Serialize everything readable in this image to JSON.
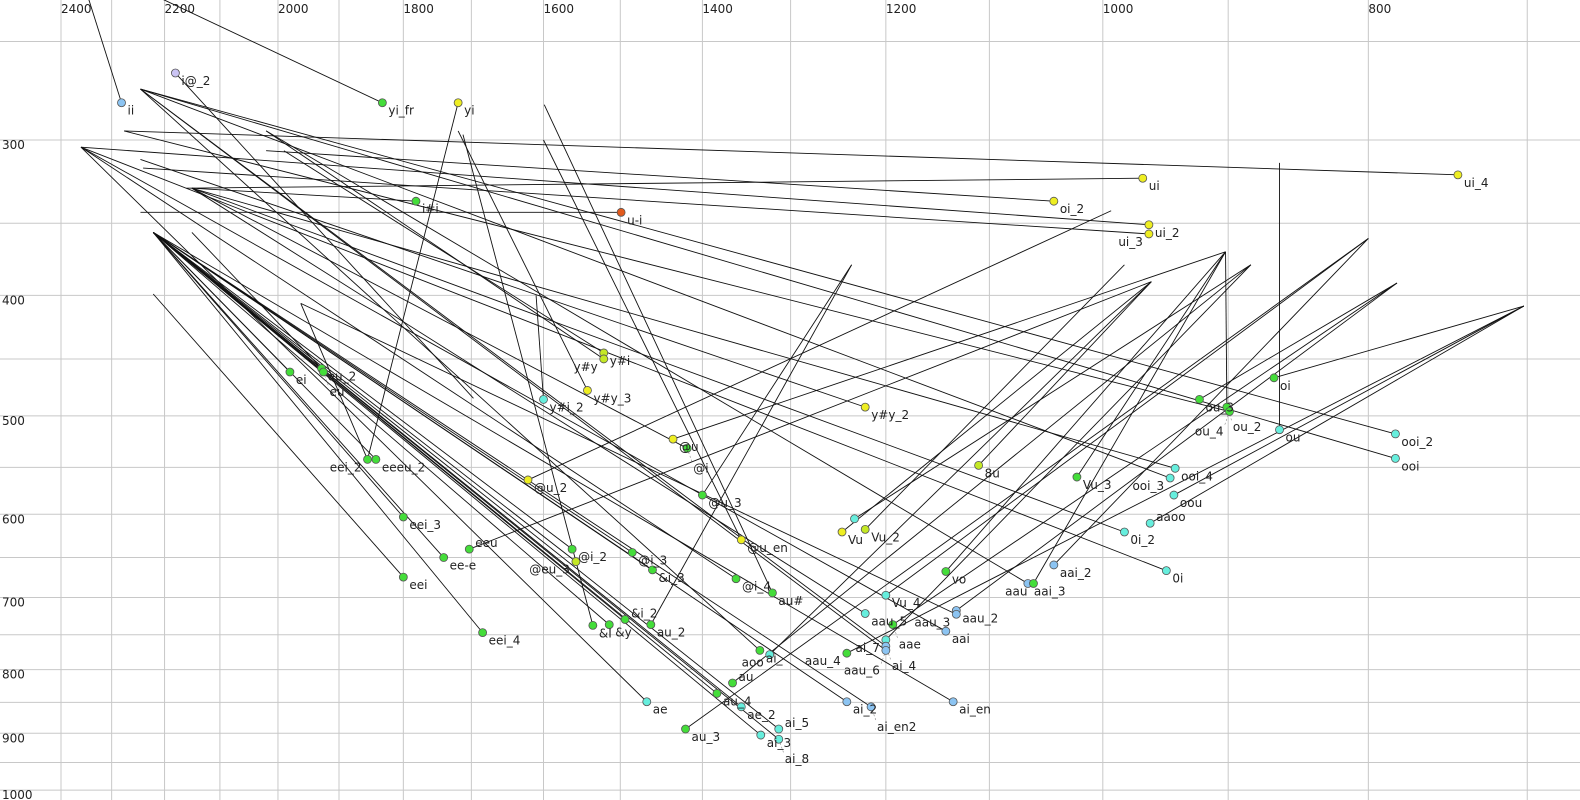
{
  "chart_data": {
    "type": "scatter",
    "title": "",
    "xlabel": "",
    "ylabel": "",
    "x_axis": {
      "reversed": true,
      "scale": "log",
      "range": [
        2400,
        700
      ],
      "ticks": [
        2400,
        2200,
        2000,
        1800,
        1600,
        1400,
        1200,
        1000,
        800
      ],
      "grid_step": 100
    },
    "y_axis": {
      "reversed": true,
      "scale": "log",
      "range": [
        250,
        1000
      ],
      "ticks": [
        300,
        400,
        500,
        600,
        700,
        800,
        900,
        1000
      ],
      "grid_step": 50
    },
    "grid": true,
    "palette": {
      "green": "#44dd3a",
      "yellow": "#eeee22",
      "yellowgreen": "#c4e825",
      "cyan": "#66eedd",
      "blue": "#8cc4f2",
      "lavender": "#cbc4f4",
      "orange": "#e25a1c",
      "line": "#111111",
      "grid": "#c8c8c8"
    },
    "points": [
      {
        "label": "ii",
        "f2": 2281,
        "f1": 280,
        "color": "blue",
        "traj": [
          2345,
          231
        ]
      },
      {
        "label": "i@_2",
        "f2": 2180,
        "f1": 265,
        "color": "lavender",
        "traj": [
          1697,
          484
        ]
      },
      {
        "label": "yi_fr",
        "f2": 1832,
        "f1": 280,
        "color": "green",
        "traj": [
          2205,
          231
        ]
      },
      {
        "label": "yi",
        "f2": 1719,
        "f1": 280,
        "color": "yellow",
        "traj": [
          1855,
          542
        ]
      },
      {
        "label": "i#i",
        "f2": 1781,
        "f1": 336,
        "color": "green",
        "traj": [
          2150,
          328
        ]
      },
      {
        "label": "u-i",
        "f2": 1499,
        "f1": 343,
        "color": "orange",
        "traj": [
          2245,
          343
        ]
      },
      {
        "label": "ui",
        "f2": 967,
        "f1": 322,
        "color": "yellow",
        "traj": [
          2160,
          328
        ]
      },
      {
        "label": "oi_2",
        "f2": 1042,
        "f1": 336,
        "color": "yellow",
        "traj": [
          2020,
          306
        ]
      },
      {
        "label": "ui_4",
        "f2": 742,
        "f1": 320,
        "color": "yellow",
        "traj": [
          2276,
          295
        ]
      },
      {
        "label": "ui_2",
        "f2": 962,
        "f1": 351,
        "color": "yellow",
        "traj": [
          2360,
          304
        ]
      },
      {
        "label": "ui_3",
        "f2": 962,
        "f1": 357,
        "color": "yellow",
        "traj": [
          2240,
          316
        ]
      },
      {
        "label": "y#i",
        "f2": 1521,
        "f1": 445,
        "color": "yellowgreen",
        "traj": [
          1990,
          306
        ]
      },
      {
        "label": "y#y",
        "f2": 1521,
        "f1": 450,
        "color": "yellowgreen",
        "traj": [
          2020,
          295
        ]
      },
      {
        "label": "y#y_3",
        "f2": 1542,
        "f1": 477,
        "color": "yellow",
        "traj": [
          1719,
          295
        ]
      },
      {
        "label": "y#i_2",
        "f2": 1600,
        "f1": 485,
        "color": "cyan",
        "traj": [
          1610,
          400
        ]
      },
      {
        "label": "y#y_2",
        "f2": 1221,
        "f1": 492,
        "color": "yellow",
        "traj": [
          2245,
          311
        ]
      },
      {
        "label": "ei",
        "f2": 1980,
        "f1": 461,
        "color": "green",
        "traj": [
          2221,
          356
        ]
      },
      {
        "label": "eu_2",
        "f2": 1928,
        "f1": 458,
        "color": "green",
        "traj": [
          2150,
          356
        ]
      },
      {
        "label": "eu",
        "f2": 1925,
        "f1": 461,
        "color": "green",
        "traj": [
          2221,
          356
        ]
      },
      {
        "label": "eeeu_2",
        "f2": 1842,
        "f1": 542,
        "color": "green",
        "traj": [
          2221,
          356
        ]
      },
      {
        "label": "eei_2",
        "f2": 1855,
        "f1": 542,
        "color": "green",
        "traj": [
          1962,
          406
        ]
      },
      {
        "label": "eei_3",
        "f2": 1800,
        "f1": 603,
        "color": "green",
        "traj": [
          2221,
          356
        ]
      },
      {
        "label": "ee-e",
        "f2": 1740,
        "f1": 650,
        "color": "green",
        "traj": [
          2221,
          356
        ]
      },
      {
        "label": "eeu",
        "f2": 1703,
        "f1": 640,
        "color": "green",
        "traj": [
          960,
          390
        ]
      },
      {
        "label": "eei",
        "f2": 1800,
        "f1": 674,
        "color": "green",
        "traj": [
          2221,
          399
        ]
      },
      {
        "label": "eei_4",
        "f2": 1684,
        "f1": 747,
        "color": "green",
        "traj": [
          2221,
          356
        ]
      },
      {
        "label": "@u_2",
        "f2": 1621,
        "f1": 563,
        "color": "yellow",
        "traj": [
          993,
          342
        ]
      },
      {
        "label": "@u",
        "f2": 1435,
        "f1": 522,
        "color": "yellow",
        "traj": [
          902,
          369
        ]
      },
      {
        "label": "@i",
        "f2": 1418,
        "f1": 531,
        "color": "green",
        "traj": [
          2150,
          328
        ]
      },
      {
        "label": "@u_3",
        "f2": 1400,
        "f1": 579,
        "color": "green",
        "traj": [
          1235,
          378
        ]
      },
      {
        "label": "@u_en",
        "f2": 1355,
        "f1": 629,
        "color": "yellow",
        "traj": [
          1600,
          300
        ]
      },
      {
        "label": "Vu",
        "f2": 1245,
        "f1": 620,
        "color": "yellow",
        "traj": [
          960,
          390
        ]
      },
      {
        "label": "Vu_2",
        "f2": 1221,
        "f1": 617,
        "color": "yellowgreen",
        "traj": [
          982,
          378
        ]
      },
      {
        "label": "",
        "f2": 1232,
        "f1": 605,
        "color": "cyan",
        "traj": [
          883,
          378
        ]
      },
      {
        "label": "@i_2",
        "f2": 1562,
        "f1": 640,
        "color": "green",
        "traj": [
          2221,
          356
        ]
      },
      {
        "label": "@eu_3",
        "f2": 1557,
        "f1": 655,
        "color": "yellowgreen",
        "traj": [
          2221,
          356
        ]
      },
      {
        "label": "@i_3",
        "f2": 1485,
        "f1": 644,
        "color": "green",
        "traj": [
          2221,
          356
        ]
      },
      {
        "label": "&i_3",
        "f2": 1460,
        "f1": 665,
        "color": "green",
        "traj": [
          2221,
          356
        ]
      },
      {
        "label": "@i_4",
        "f2": 1361,
        "f1": 676,
        "color": "green",
        "traj": [
          2360,
          304
        ]
      },
      {
        "label": "au#",
        "f2": 1320,
        "f1": 694,
        "color": "green",
        "traj": [
          1599,
          281
        ]
      },
      {
        "label": "&I",
        "f2": 1535,
        "f1": 737,
        "color": "green",
        "traj": [
          1712,
          297
        ]
      },
      {
        "label": "&y",
        "f2": 1514,
        "f1": 736,
        "color": "green",
        "traj": [
          2221,
          356
        ]
      },
      {
        "label": "&i_2",
        "f2": 1494,
        "f1": 729,
        "color": "green",
        "traj": [
          2221,
          356
        ]
      },
      {
        "label": "au_2",
        "f2": 1462,
        "f1": 736,
        "color": "green",
        "traj": [
          1235,
          378
        ]
      },
      {
        "label": "ae",
        "f2": 1467,
        "f1": 849,
        "color": "cyan",
        "traj": [
          2360,
          304
        ]
      },
      {
        "label": "au_3",
        "f2": 1420,
        "f1": 893,
        "color": "green",
        "traj": [
          800,
          360
        ]
      },
      {
        "label": "au_4",
        "f2": 1383,
        "f1": 836,
        "color": "green",
        "traj": [
          2221,
          356
        ]
      },
      {
        "label": "au",
        "f2": 1365,
        "f1": 820,
        "color": "green",
        "traj": [
          883,
          378
        ]
      },
      {
        "label": "ae_2",
        "f2": 1355,
        "f1": 857,
        "color": "cyan",
        "traj": [
          2221,
          356
        ]
      },
      {
        "label": "ai_3",
        "f2": 1333,
        "f1": 903,
        "color": "cyan",
        "traj": [
          2221,
          356
        ]
      },
      {
        "label": "ai_5",
        "f2": 1313,
        "f1": 893,
        "color": "cyan",
        "traj": [
          2221,
          356
        ]
      },
      {
        "label": "ai_8",
        "f2": 1313,
        "f1": 910,
        "color": "cyan",
        "traj": [
          2221,
          356
        ]
      },
      {
        "label": "ai_",
        "f2": 1334,
        "f1": 772,
        "color": "green",
        "traj": [
          2245,
          273
        ]
      },
      {
        "label": "aoo",
        "f2": 1323,
        "f1": 778,
        "color": "cyan",
        "traj": [
          960,
          390
        ]
      },
      {
        "label": "Vu_4",
        "f2": 1200,
        "f1": 697,
        "color": "cyan",
        "traj": [
          800,
          360
        ]
      },
      {
        "label": "aau_5",
        "f2": 1221,
        "f1": 721,
        "color": "cyan",
        "traj": [
          2150,
          328
        ]
      },
      {
        "label": "aae",
        "f2": 1193,
        "f1": 736,
        "color": "green",
        "traj": [
          781,
          391
        ]
      },
      {
        "label": "ai_7",
        "f2": 1200,
        "f1": 757,
        "color": "cyan",
        "traj": [
          883,
          378
        ]
      },
      {
        "label": "ai_4",
        "f2": 1200,
        "f1": 766,
        "color": "blue",
        "traj": [
          2245,
          273
        ]
      },
      {
        "label": "aau_6",
        "f2": 1200,
        "f1": 772,
        "color": "blue",
        "traj": [
          2245,
          273
        ]
      },
      {
        "label": "aau_4",
        "f2": 1240,
        "f1": 776,
        "color": "green",
        "traj": [
          702,
          408
        ]
      },
      {
        "label": "aau_2",
        "f2": 1131,
        "f1": 717,
        "color": "blue",
        "traj": [
          781,
          391
        ]
      },
      {
        "label": "aau_3",
        "f2": 1131,
        "f1": 722,
        "color": "blue",
        "traj": [
          1962,
          406
        ]
      },
      {
        "label": "aai",
        "f2": 1141,
        "f1": 745,
        "color": "blue",
        "traj": [
          2360,
          304
        ]
      },
      {
        "label": "vo",
        "f2": 1141,
        "f1": 667,
        "color": "green",
        "traj": [
          902,
          369
        ]
      },
      {
        "label": "aai_2",
        "f2": 1042,
        "f1": 659,
        "color": "blue",
        "traj": [
          800,
          360
        ]
      },
      {
        "label": "aai_3",
        "f2": 1065,
        "f1": 682,
        "color": "blue",
        "traj": [
          2020,
          295
        ]
      },
      {
        "label": "aau",
        "f2": 1060,
        "f1": 682,
        "color": "green",
        "traj": [
          902,
          369
        ]
      },
      {
        "label": "0i",
        "f2": 948,
        "f1": 666,
        "color": "cyan",
        "traj": [
          2360,
          304
        ]
      },
      {
        "label": "0i_2",
        "f2": 982,
        "f1": 620,
        "color": "cyan",
        "traj": [
          2150,
          328
        ]
      },
      {
        "label": "aaoo",
        "f2": 961,
        "f1": 610,
        "color": "cyan",
        "traj": [
          702,
          408
        ]
      },
      {
        "label": "oou",
        "f2": 942,
        "f1": 579,
        "color": "cyan",
        "traj": [
          702,
          408
        ]
      },
      {
        "label": "ooi_4",
        "f2": 941,
        "f1": 551,
        "color": "cyan",
        "traj": [
          2150,
          328
        ]
      },
      {
        "label": "ooi_3",
        "f2": 945,
        "f1": 561,
        "color": "cyan",
        "traj": [
          2245,
          273
        ]
      },
      {
        "label": "Vu_3",
        "f2": 1022,
        "f1": 560,
        "color": "green",
        "traj": [
          902,
          369
        ]
      },
      {
        "label": "8u",
        "f2": 1110,
        "f1": 548,
        "color": "yellowgreen",
        "traj": [
          960,
          390
        ]
      },
      {
        "label": "ou_3",
        "f2": 922,
        "f1": 485,
        "color": "green",
        "traj": [
          781,
          391
        ]
      },
      {
        "label": "ou_2",
        "f2": 901,
        "f1": 492,
        "color": "green",
        "traj": [
          902,
          369
        ]
      },
      {
        "label": "ou_4",
        "f2": 899,
        "f1": 496,
        "color": "green",
        "traj": [
          2276,
          295
        ]
      },
      {
        "label": "oi",
        "f2": 866,
        "f1": 466,
        "color": "green",
        "traj": [
          702,
          408
        ]
      },
      {
        "label": "ou",
        "f2": 862,
        "f1": 513,
        "color": "cyan",
        "traj": [
          862,
          313
        ]
      },
      {
        "label": "ooi_2",
        "f2": 782,
        "f1": 517,
        "color": "cyan",
        "traj": [
          2245,
          273
        ]
      },
      {
        "label": "ooi",
        "f2": 782,
        "f1": 541,
        "color": "cyan",
        "traj": [
          2245,
          273
        ]
      },
      {
        "label": "ai_en",
        "f2": 1134,
        "f1": 849,
        "color": "blue",
        "traj": [
          2221,
          356
        ]
      },
      {
        "label": "ai_2",
        "f2": 1240,
        "f1": 849,
        "color": "blue",
        "traj": [
          2221,
          356
        ]
      },
      {
        "label": "ai_en2",
        "f2": 1215,
        "f1": 857,
        "color": "blue",
        "traj": [
          2221,
          356
        ]
      }
    ]
  }
}
